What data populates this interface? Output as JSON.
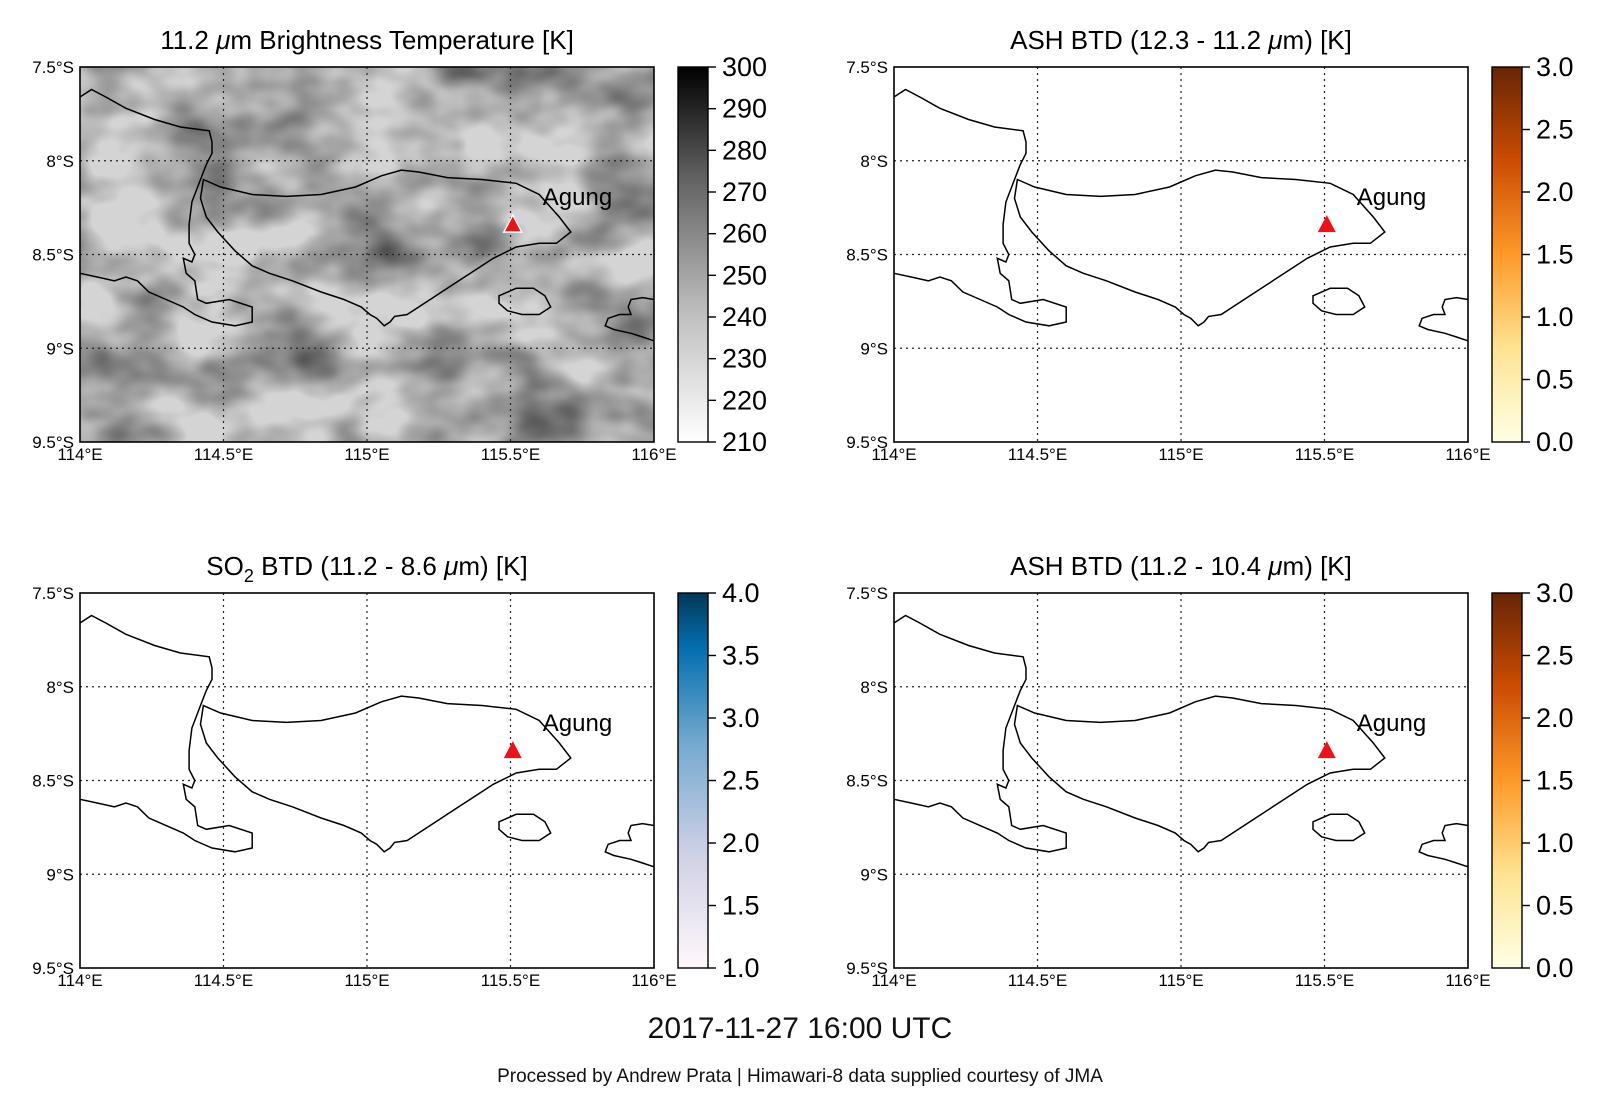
{
  "panels": [
    {
      "title_parts": [
        "11.2 ",
        "μ",
        "m Brightness Temperature [K]"
      ],
      "title_italic_index": 1,
      "colormap": "greys",
      "colorbar_ticks": [
        "300",
        "290",
        "280",
        "270",
        "260",
        "250",
        "240",
        "230",
        "220",
        "210"
      ],
      "colorbar_range": [
        210,
        300
      ],
      "has_field": true
    },
    {
      "title_parts": [
        "ASH BTD (12.3 - 11.2 ",
        "μ",
        "m) [K]"
      ],
      "title_italic_index": 1,
      "colormap": "ylorbr",
      "colorbar_ticks": [
        "3.0",
        "2.5",
        "2.0",
        "1.5",
        "1.0",
        "0.5",
        "0.0"
      ],
      "colorbar_range": [
        0,
        3
      ],
      "has_field": false
    },
    {
      "title_parts": [
        "SO",
        "2",
        " BTD (11.2 - 8.6 ",
        "μ",
        "m) [K]"
      ],
      "title_sub_index": 1,
      "title_italic_index": 3,
      "colormap": "pubu",
      "colorbar_ticks": [
        "4.0",
        "3.5",
        "3.0",
        "2.5",
        "2.0",
        "1.5",
        "1.0"
      ],
      "colorbar_range": [
        1,
        4
      ],
      "has_field": false
    },
    {
      "title_parts": [
        "ASH BTD (11.2 - 10.4 ",
        "μ",
        "m) [K]"
      ],
      "title_italic_index": 1,
      "colormap": "ylorbr",
      "colorbar_ticks": [
        "3.0",
        "2.5",
        "2.0",
        "1.5",
        "1.0",
        "0.5",
        "0.0"
      ],
      "colorbar_range": [
        0,
        3
      ],
      "has_field": false
    }
  ],
  "map": {
    "lon_range": [
      114,
      116
    ],
    "lat_range": [
      -9.5,
      -7.5
    ],
    "lon_ticks": [
      "114°E",
      "114.5°E",
      "115°E",
      "115.5°E",
      "116°E"
    ],
    "lat_ticks": [
      "7.5°S",
      "8°S",
      "8.5°S",
      "9°S",
      "9.5°S"
    ],
    "volcano": {
      "name": "Agung",
      "lon": 115.508,
      "lat": -8.343,
      "marker_color": "#e8141c"
    }
  },
  "footer": {
    "timestamp": "2017-11-27 16:00 UTC",
    "credit": "Processed by Andrew Prata | Himawari-8 data supplied courtesy of JMA"
  }
}
